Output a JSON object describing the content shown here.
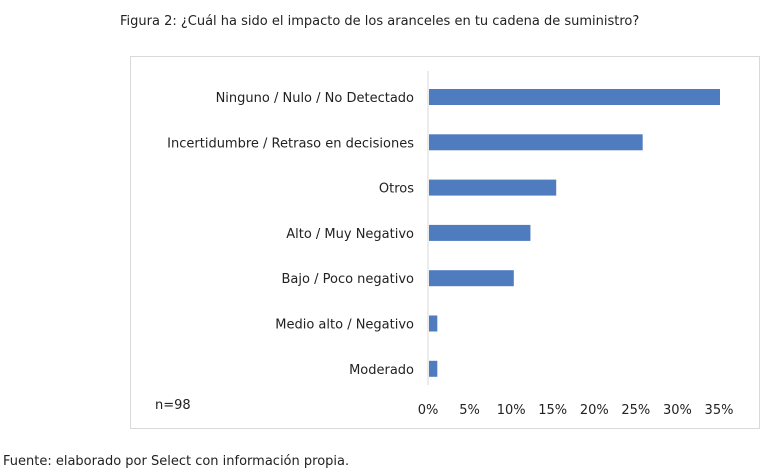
{
  "figure_title": "Figura 2: ¿Cuál ha sido el impacto de los aranceles en tu cadena de suministro?",
  "footnote": "Fuente: elaborado por Select con información propia.",
  "chart_data": {
    "type": "bar",
    "orientation": "horizontal",
    "title": "",
    "xlabel": "",
    "ylabel": "",
    "annotation": "n=98",
    "categories": [
      "Ninguno / Nulo / No Detectado",
      "Incertidumbre / Retraso en decisiones",
      "Otros",
      "Alto / Muy Negativo",
      "Bajo / Poco negativo",
      "Medio alto / Negativo",
      "Moderado"
    ],
    "values": [
      35,
      25.7,
      15.3,
      12.2,
      10.2,
      1,
      1
    ],
    "xlim": [
      0,
      35
    ],
    "xticks": [
      0,
      5,
      10,
      15,
      20,
      25,
      30,
      35
    ],
    "tick_format": "{v}%",
    "grid": false,
    "legend": "none",
    "bar_color": "#4f7bbf",
    "axis_color": "#d9d9d9"
  }
}
